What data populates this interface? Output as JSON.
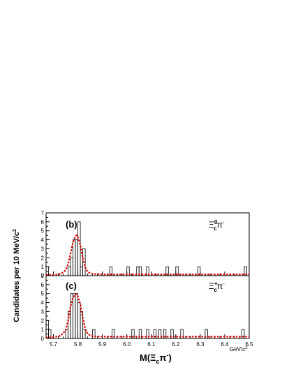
{
  "chart_data": [
    {
      "type": "bar",
      "panel": "(b)",
      "channel": "Ξc0π−",
      "xlim": [
        5.67,
        6.5
      ],
      "ylim": [
        0,
        7
      ],
      "yticks": [
        0,
        1,
        2,
        3,
        4,
        5,
        6,
        7
      ],
      "bin_width": 0.01,
      "histogram": {
        "bin_low_edges": [
          5.67,
          5.76,
          5.77,
          5.78,
          5.79,
          5.8,
          5.81,
          5.82,
          5.93,
          6.0,
          6.04,
          6.05,
          6.08,
          6.16,
          6.2,
          6.29,
          6.48
        ],
        "counts": [
          1,
          1,
          2,
          4,
          4,
          6,
          1,
          3,
          1,
          1,
          1,
          1,
          1,
          1,
          1,
          1,
          1
        ]
      },
      "fit": {
        "x": [
          5.67,
          5.7,
          5.73,
          5.75,
          5.76,
          5.77,
          5.78,
          5.79,
          5.795,
          5.8,
          5.81,
          5.82,
          5.83,
          5.84,
          5.86,
          5.9,
          6.0,
          6.2,
          6.5
        ],
        "y": [
          0.1,
          0.1,
          0.2,
          0.6,
          1.3,
          2.5,
          3.7,
          4.4,
          4.5,
          4.3,
          3.4,
          2.0,
          0.9,
          0.4,
          0.2,
          0.15,
          0.15,
          0.15,
          0.15
        ]
      },
      "ylabel": "",
      "xlabel": ""
    },
    {
      "type": "bar",
      "panel": "(c)",
      "channel": "Ξc+π−",
      "xlim": [
        5.67,
        6.5
      ],
      "ylim": [
        0,
        7
      ],
      "yticks": [
        0,
        1,
        2,
        3,
        4,
        5,
        6,
        7
      ],
      "xticks": [
        5.7,
        5.8,
        5.9,
        6.0,
        6.1,
        6.2,
        6.3,
        6.4,
        6.5
      ],
      "bin_width": 0.01,
      "histogram": {
        "bin_low_edges": [
          5.67,
          5.68,
          5.75,
          5.76,
          5.77,
          5.78,
          5.79,
          5.8,
          5.81,
          5.82,
          5.86,
          5.94,
          6.02,
          6.05,
          6.08,
          6.11,
          6.13,
          6.15,
          6.18,
          6.22,
          6.32,
          6.47
        ],
        "counts": [
          2,
          1,
          1,
          3,
          5,
          5,
          5,
          4,
          3,
          1,
          1,
          1,
          1,
          1,
          1,
          1,
          1,
          1,
          1,
          1,
          1,
          1
        ]
      },
      "fit": {
        "x": [
          5.67,
          5.7,
          5.73,
          5.75,
          5.76,
          5.77,
          5.78,
          5.79,
          5.795,
          5.8,
          5.81,
          5.82,
          5.83,
          5.84,
          5.86,
          5.9,
          6.0,
          6.2,
          6.5
        ],
        "y": [
          0.1,
          0.15,
          0.3,
          0.9,
          2.0,
          3.6,
          4.6,
          4.9,
          4.95,
          4.7,
          3.8,
          2.3,
          1.1,
          0.5,
          0.25,
          0.2,
          0.2,
          0.2,
          0.2
        ]
      },
      "ylabel": "Candidates per 10 MeV/c²",
      "xlabel": "M(Ξcπ−)",
      "x_unit": "GeV/c²"
    }
  ],
  "labels": {
    "ylabel": "Candidates per 10 MeV/c",
    "ylabel_sup": "2",
    "xlabel_main": "M(Ξ",
    "xlabel_sub": "c",
    "xlabel_pi": "π",
    "xlabel_sup": "-",
    "xlabel_close": ")",
    "unit_main": "GeV/c",
    "unit_sup": "2",
    "b_tag": "(b)",
    "c_tag": "(c)",
    "b_chan_xi": "Ξ",
    "b_chan_sub": "c",
    "b_chan_sup": "0",
    "b_chan_pi": "π",
    "b_chan_pisup": "-",
    "c_chan_xi": "Ξ",
    "c_chan_sub": "c",
    "c_chan_sup": "+",
    "c_chan_pi": "π",
    "c_chan_pisup": "-"
  },
  "colors": {
    "histogram": "#000000",
    "fit": "#dd0000",
    "axis": "#000000"
  }
}
